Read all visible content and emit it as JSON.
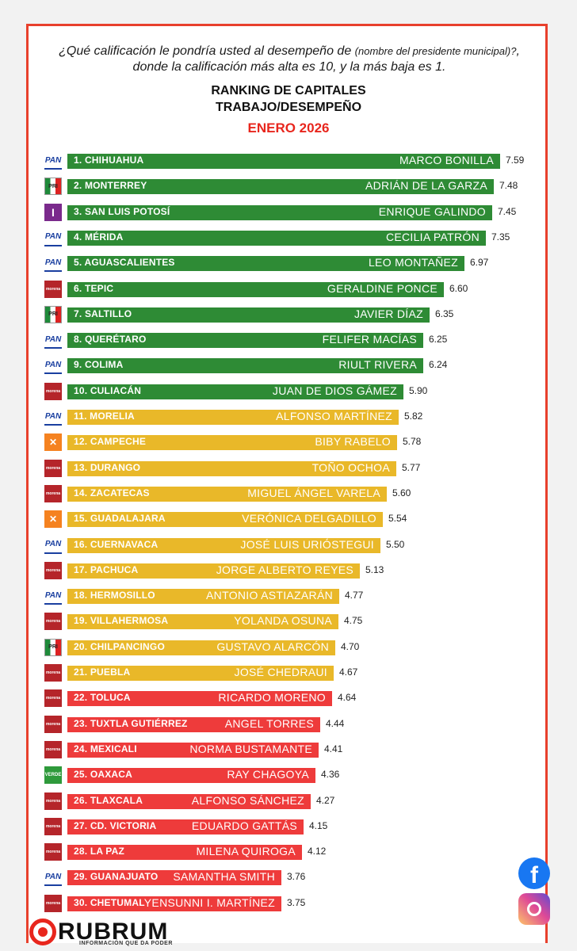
{
  "header": {
    "question_main": "¿Qué calificación le pondría usted al desempeño de",
    "question_paren": "(nombre del presidente municipal)?",
    "question_tail": ", donde la calificación más alta es 10, y la más baja es 1.",
    "title_line1": "RANKING DE CAPITALES",
    "title_line2": "TRABAJO/DESEMPEÑO",
    "period": "ENERO 2026"
  },
  "colors": {
    "green": "#2e8b35",
    "yellow": "#e9b829",
    "red": "#ee3b3b",
    "frame": "#e8402c",
    "accent": "#e8261d"
  },
  "brand": {
    "name": "RUBRUM",
    "tagline": "INFORMACIÓN QUE DA PODER"
  },
  "social": {
    "facebook": "facebook-icon",
    "instagram": "instagram-icon"
  },
  "chart_data": {
    "type": "bar",
    "title": "RANKING DE CAPITALES TRABAJO/DESEMPEÑO",
    "xlim": [
      0,
      10
    ],
    "categories": [
      "1. CHIHUAHUA",
      "2. MONTERREY",
      "3. SAN LUIS POTOSÍ",
      "4. MÉRIDA",
      "5. AGUASCALIENTES",
      "6. TEPIC",
      "7. SALTILLO",
      "8. QUERÉTARO",
      "9. COLIMA",
      "10. CULIACÁN",
      "11. MORELIA",
      "12. CAMPECHE",
      "13. DURANGO",
      "14. ZACATECAS",
      "15. GUADALAJARA",
      "16. CUERNAVACA",
      "17. PACHUCA",
      "18. HERMOSILLO",
      "19. VILLAHERMOSA",
      "20. CHILPANCINGO",
      "21. PUEBLA",
      "22. TOLUCA",
      "23. TUXTLA GUTIÉRREZ",
      "24. MEXICALI",
      "25. OAXACA",
      "26. TLAXCALA",
      "27. CD. VICTORIA",
      "28. LA PAZ",
      "29. GUANAJUATO",
      "30. CHETUMAL"
    ],
    "names": [
      "MARCO BONILLA",
      "ADRIÁN DE LA GARZA",
      "ENRIQUE GALINDO",
      "CECILIA PATRÓN",
      "LEO MONTAÑEZ",
      "GERALDINE PONCE",
      "JAVIER DÍAZ",
      "FELIFER MACÍAS",
      "RIULT RIVERA",
      "JUAN DE DIOS GÁMEZ",
      "ALFONSO MARTÍNEZ",
      "BIBY RABELO",
      "TOÑO OCHOA",
      "MIGUEL ÁNGEL VARELA",
      "VERÓNICA DELGADILLO",
      "JOSÉ LUIS URIÓSTEGUI",
      "JORGE ALBERTO REYES",
      "ANTONIO ASTIAZARÁN",
      "YOLANDA OSUNA",
      "GUSTAVO ALARCÓN",
      "JOSÉ CHEDRAUI",
      "RICARDO MORENO",
      "ANGEL TORRES",
      "NORMA BUSTAMANTE",
      "RAY CHAGOYA",
      "ALFONSO SÁNCHEZ",
      "EDUARDO GATTÁS",
      "MILENA QUIROGA",
      "SAMANTHA SMITH",
      "YENSUNNI I. MARTÍNEZ"
    ],
    "values": [
      7.59,
      7.48,
      7.45,
      7.35,
      6.97,
      6.6,
      6.35,
      6.25,
      6.24,
      5.9,
      5.82,
      5.78,
      5.77,
      5.6,
      5.54,
      5.5,
      5.13,
      4.77,
      4.75,
      4.7,
      4.67,
      4.64,
      4.44,
      4.41,
      4.36,
      4.27,
      4.15,
      4.12,
      3.76,
      3.75
    ],
    "value_labels": [
      "7.59",
      "7.48",
      "7.45",
      "7.35",
      "6.97",
      "6.60",
      "6.35",
      "6.25",
      "6.24",
      "5.90",
      "5.82",
      "5.78",
      "5.77",
      "5.60",
      "5.54",
      "5.50",
      "5.13",
      "4.77",
      "4.75",
      "4.70",
      "4.67",
      "4.64",
      "4.44",
      "4.41",
      "4.36",
      "4.27",
      "4.15",
      "4.12",
      "3.76",
      "3.75"
    ],
    "parties": [
      "PAN",
      "PRI",
      "IND",
      "PAN",
      "PAN",
      "MORENA",
      "PRI",
      "PAN",
      "PAN",
      "MORENA",
      "PAN",
      "MC",
      "MORENA",
      "MORENA",
      "MC",
      "PAN",
      "MORENA",
      "PAN",
      "MORENA",
      "PRI",
      "MORENA",
      "MORENA",
      "MORENA",
      "MORENA",
      "VERDE",
      "MORENA",
      "MORENA",
      "MORENA",
      "PAN",
      "MORENA"
    ],
    "bar_colors": [
      "green",
      "green",
      "green",
      "green",
      "green",
      "green",
      "green",
      "green",
      "green",
      "green",
      "yellow",
      "yellow",
      "yellow",
      "yellow",
      "yellow",
      "yellow",
      "yellow",
      "yellow",
      "yellow",
      "yellow",
      "yellow",
      "red",
      "red",
      "red",
      "red",
      "red",
      "red",
      "red",
      "red",
      "red"
    ]
  }
}
